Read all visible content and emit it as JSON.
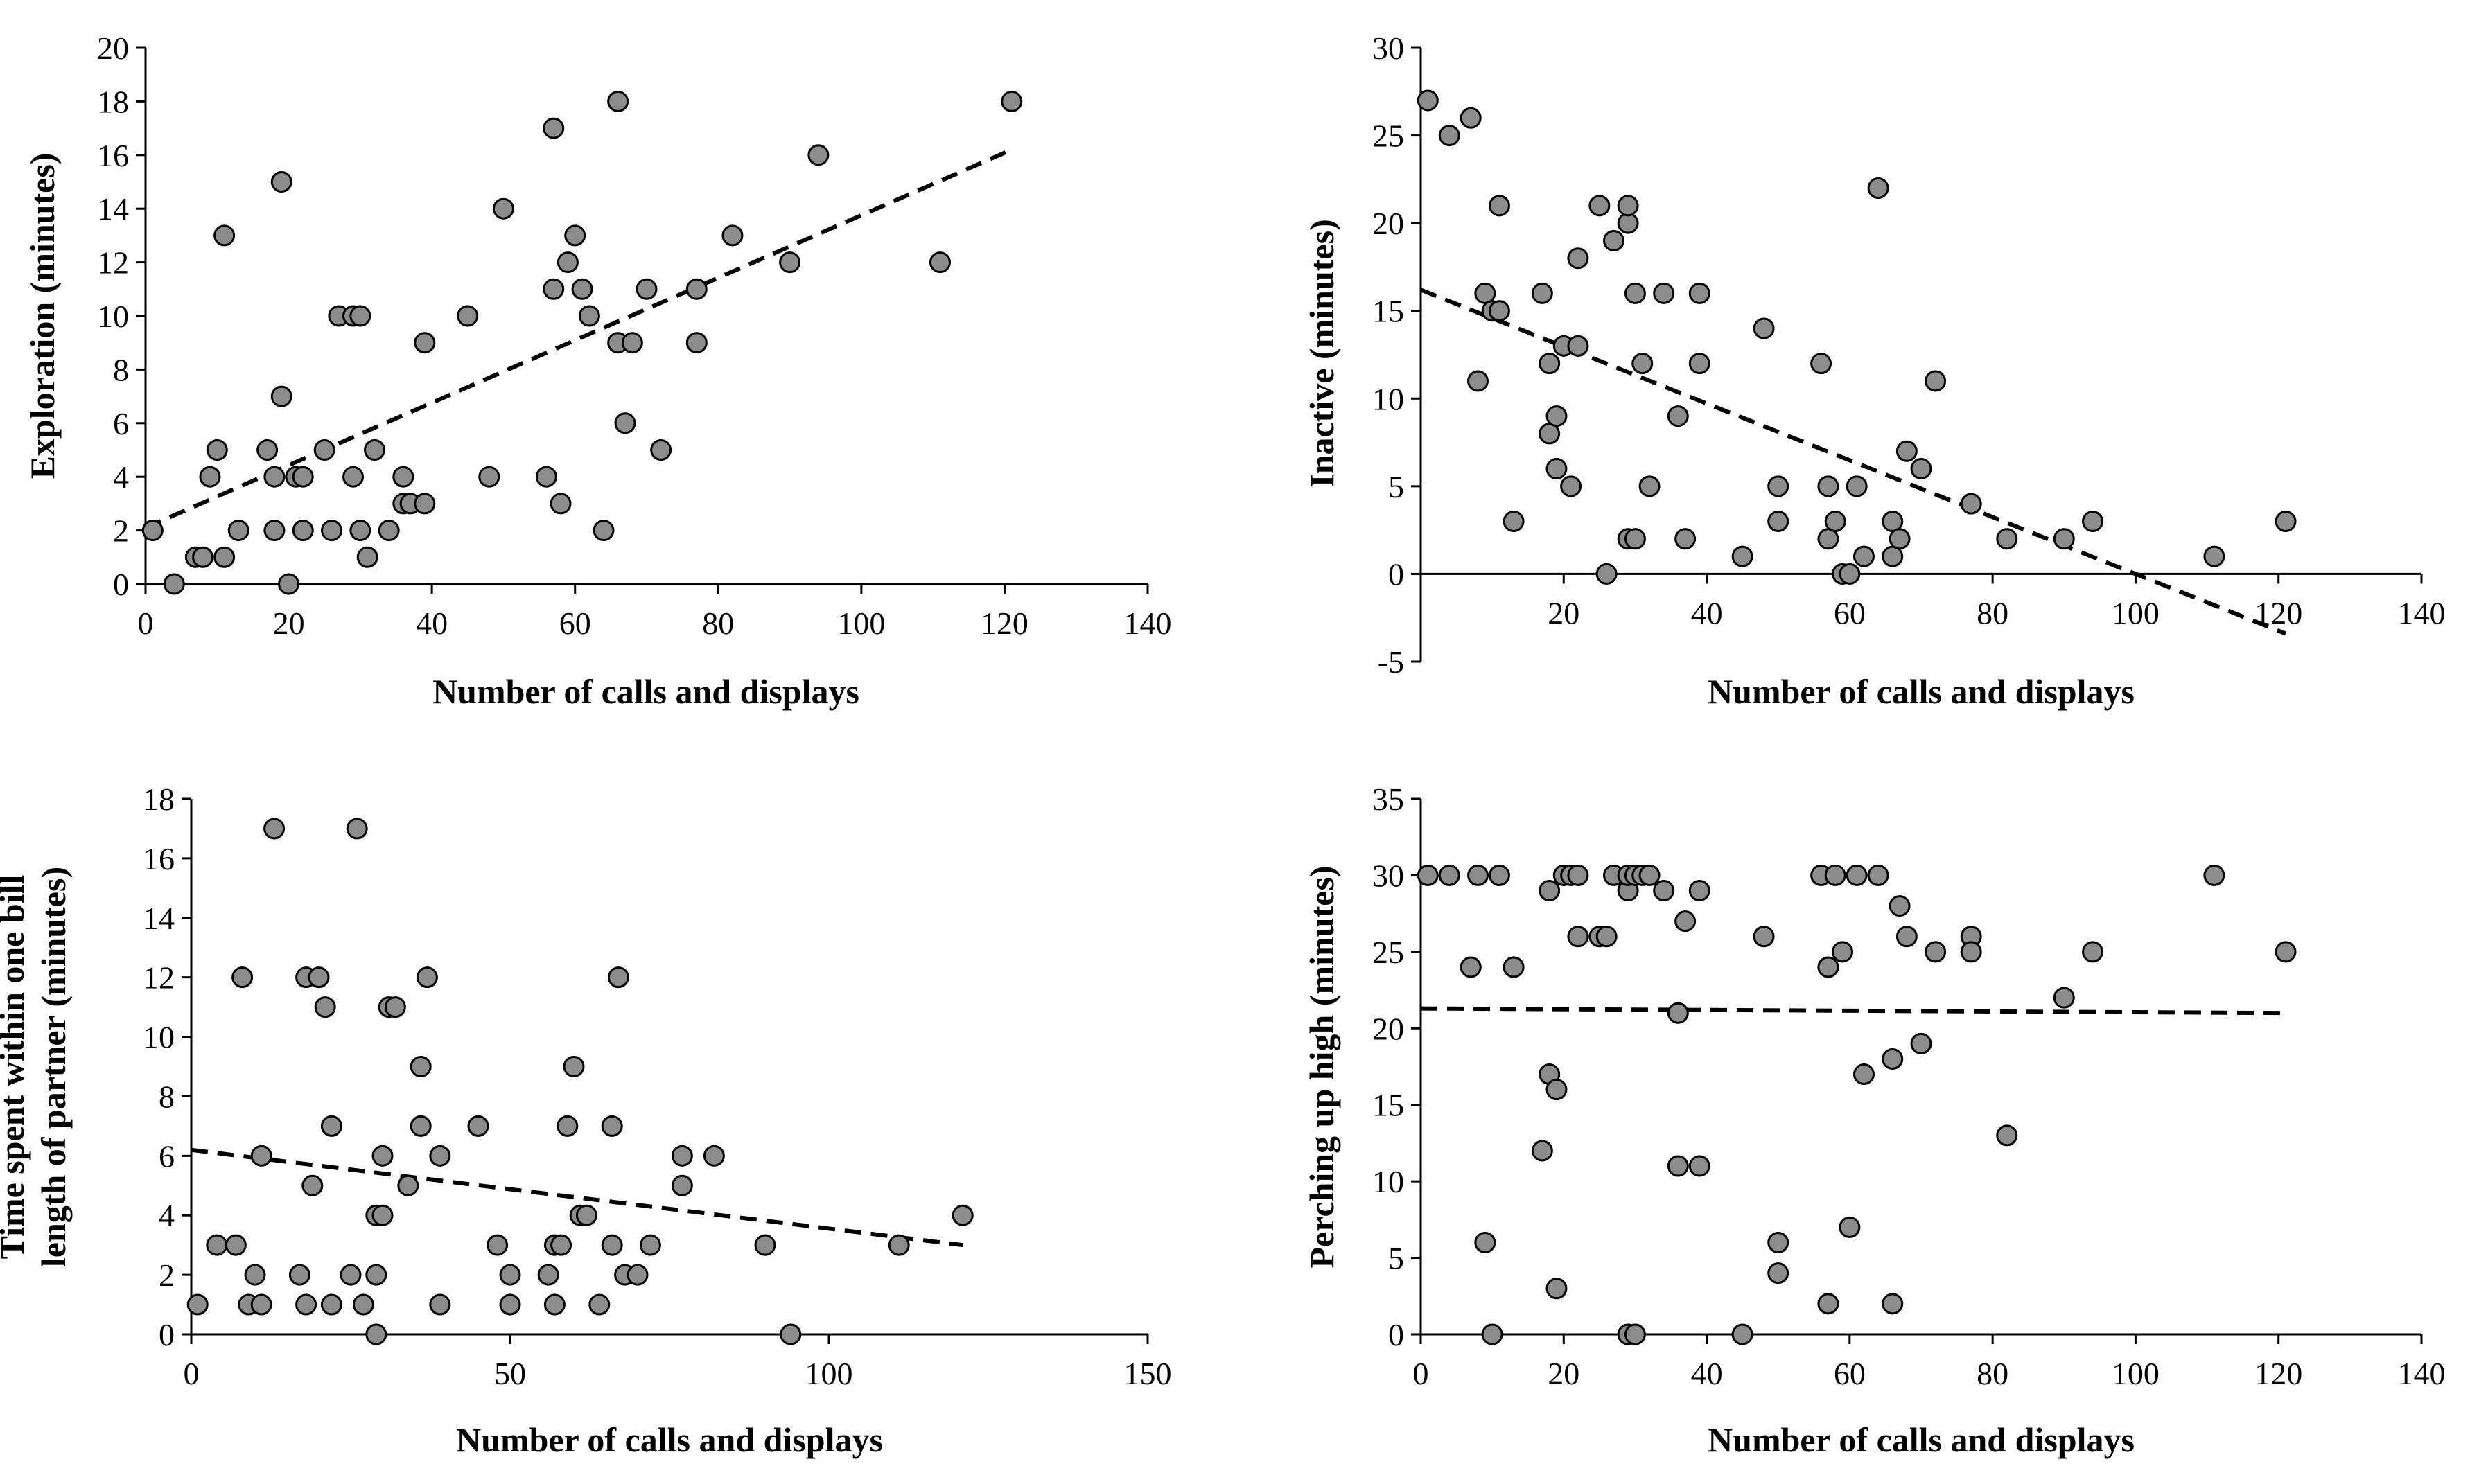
{
  "chart_data": [
    {
      "id": "exploration",
      "type": "scatter",
      "xlabel": "Number of calls and displays",
      "ylabel_lines": [
        "Exploration (minutes)"
      ],
      "xlim": [
        0,
        140
      ],
      "xticks": [
        0,
        20,
        40,
        60,
        80,
        100,
        120,
        140
      ],
      "ylim": [
        0,
        20
      ],
      "yticks": [
        0,
        2,
        4,
        6,
        8,
        10,
        12,
        14,
        16,
        18,
        20
      ],
      "x_axis_at": 0,
      "trendline": {
        "x": [
          0,
          121
        ],
        "y": [
          2.1,
          16.2
        ]
      },
      "points": [
        [
          1,
          2
        ],
        [
          4,
          0
        ],
        [
          7,
          1
        ],
        [
          8,
          1
        ],
        [
          9,
          4
        ],
        [
          10,
          5
        ],
        [
          11,
          1
        ],
        [
          11,
          13
        ],
        [
          13,
          2
        ],
        [
          17,
          5
        ],
        [
          18,
          2
        ],
        [
          18,
          4
        ],
        [
          19,
          7
        ],
        [
          19,
          15
        ],
        [
          20,
          0
        ],
        [
          21,
          4
        ],
        [
          22,
          2
        ],
        [
          22,
          4
        ],
        [
          25,
          5
        ],
        [
          26,
          2
        ],
        [
          27,
          10
        ],
        [
          29,
          4
        ],
        [
          29,
          10
        ],
        [
          30,
          2
        ],
        [
          30,
          10
        ],
        [
          31,
          1
        ],
        [
          32,
          5
        ],
        [
          34,
          2
        ],
        [
          36,
          4
        ],
        [
          36,
          3
        ],
        [
          37,
          3
        ],
        [
          39,
          3
        ],
        [
          39,
          9
        ],
        [
          45,
          10
        ],
        [
          48,
          4
        ],
        [
          50,
          14
        ],
        [
          56,
          4
        ],
        [
          57,
          11
        ],
        [
          57,
          17
        ],
        [
          58,
          3
        ],
        [
          59,
          12
        ],
        [
          60,
          13
        ],
        [
          61,
          11
        ],
        [
          62,
          10
        ],
        [
          64,
          2
        ],
        [
          66,
          9
        ],
        [
          66,
          18
        ],
        [
          67,
          6
        ],
        [
          68,
          9
        ],
        [
          70,
          11
        ],
        [
          72,
          5
        ],
        [
          77,
          9
        ],
        [
          77,
          11
        ],
        [
          82,
          13
        ],
        [
          90,
          12
        ],
        [
          94,
          16
        ],
        [
          111,
          12
        ],
        [
          121,
          18
        ]
      ]
    },
    {
      "id": "inactive",
      "type": "scatter",
      "xlabel": "Number of calls and displays",
      "ylabel_lines": [
        "Inactive (minutes)"
      ],
      "xlim": [
        0,
        140
      ],
      "xticks": [
        20,
        40,
        60,
        80,
        100,
        120,
        140
      ],
      "ylim": [
        -5,
        30
      ],
      "yticks": [
        -5,
        0,
        5,
        10,
        15,
        20,
        25,
        30
      ],
      "x_axis_at": 0,
      "trendline": {
        "x": [
          0,
          121
        ],
        "y": [
          16.2,
          -3.4
        ]
      },
      "points": [
        [
          1,
          27
        ],
        [
          4,
          25
        ],
        [
          7,
          26
        ],
        [
          8,
          11
        ],
        [
          9,
          16
        ],
        [
          10,
          15
        ],
        [
          11,
          21
        ],
        [
          11,
          15
        ],
        [
          13,
          3
        ],
        [
          17,
          16
        ],
        [
          18,
          8
        ],
        [
          18,
          12
        ],
        [
          19,
          9
        ],
        [
          19,
          6
        ],
        [
          20,
          13
        ],
        [
          21,
          5
        ],
        [
          22,
          18
        ],
        [
          22,
          13
        ],
        [
          25,
          21
        ],
        [
          26,
          0
        ],
        [
          27,
          19
        ],
        [
          29,
          20
        ],
        [
          29,
          21
        ],
        [
          29,
          2
        ],
        [
          30,
          2
        ],
        [
          30,
          16
        ],
        [
          31,
          12
        ],
        [
          32,
          5
        ],
        [
          34,
          16
        ],
        [
          36,
          9
        ],
        [
          37,
          2
        ],
        [
          39,
          16
        ],
        [
          39,
          12
        ],
        [
          45,
          1
        ],
        [
          48,
          14
        ],
        [
          50,
          5
        ],
        [
          50,
          3
        ],
        [
          56,
          12
        ],
        [
          57,
          5
        ],
        [
          57,
          2
        ],
        [
          58,
          3
        ],
        [
          59,
          0
        ],
        [
          60,
          0
        ],
        [
          61,
          5
        ],
        [
          62,
          1
        ],
        [
          64,
          22
        ],
        [
          66,
          3
        ],
        [
          66,
          1
        ],
        [
          67,
          2
        ],
        [
          68,
          7
        ],
        [
          70,
          6
        ],
        [
          72,
          11
        ],
        [
          77,
          4
        ],
        [
          82,
          2
        ],
        [
          90,
          2
        ],
        [
          94,
          3
        ],
        [
          111,
          1
        ],
        [
          121,
          3
        ]
      ]
    },
    {
      "id": "time-near-partner",
      "type": "scatter",
      "xlabel": "Number of calls and displays",
      "ylabel_lines": [
        "Time spent within one bill",
        "length of partner (minutes)"
      ],
      "xlim": [
        0,
        150
      ],
      "xticks": [
        0,
        50,
        100,
        150
      ],
      "ylim": [
        0,
        18
      ],
      "yticks": [
        0,
        2,
        4,
        6,
        8,
        10,
        12,
        14,
        16,
        18
      ],
      "x_axis_at": 0,
      "trendline": {
        "x": [
          0,
          121
        ],
        "y": [
          6.2,
          3.0
        ]
      },
      "points": [
        [
          1,
          1
        ],
        [
          4,
          3
        ],
        [
          7,
          3
        ],
        [
          8,
          12
        ],
        [
          9,
          1
        ],
        [
          10,
          2
        ],
        [
          11,
          1
        ],
        [
          11,
          6
        ],
        [
          13,
          17
        ],
        [
          17,
          2
        ],
        [
          18,
          1
        ],
        [
          18,
          12
        ],
        [
          19,
          5
        ],
        [
          20,
          12
        ],
        [
          21,
          11
        ],
        [
          22,
          7
        ],
        [
          22,
          1
        ],
        [
          25,
          2
        ],
        [
          26,
          17
        ],
        [
          27,
          1
        ],
        [
          29,
          2
        ],
        [
          29,
          4
        ],
        [
          29,
          0
        ],
        [
          30,
          4
        ],
        [
          30,
          6
        ],
        [
          31,
          11
        ],
        [
          32,
          11
        ],
        [
          34,
          5
        ],
        [
          36,
          7
        ],
        [
          36,
          9
        ],
        [
          37,
          12
        ],
        [
          39,
          6
        ],
        [
          39,
          1
        ],
        [
          45,
          7
        ],
        [
          48,
          3
        ],
        [
          50,
          1
        ],
        [
          50,
          2
        ],
        [
          56,
          2
        ],
        [
          57,
          1
        ],
        [
          57,
          3
        ],
        [
          58,
          3
        ],
        [
          59,
          7
        ],
        [
          60,
          9
        ],
        [
          61,
          4
        ],
        [
          62,
          4
        ],
        [
          64,
          1
        ],
        [
          66,
          3
        ],
        [
          66,
          7
        ],
        [
          67,
          12
        ],
        [
          68,
          2
        ],
        [
          70,
          2
        ],
        [
          72,
          3
        ],
        [
          77,
          6
        ],
        [
          77,
          5
        ],
        [
          82,
          6
        ],
        [
          90,
          3
        ],
        [
          94,
          0
        ],
        [
          111,
          3
        ],
        [
          121,
          4
        ]
      ]
    },
    {
      "id": "perching",
      "type": "scatter",
      "xlabel": "Number of calls and displays",
      "ylabel_lines": [
        "Perching up high (minutes)"
      ],
      "xlim": [
        0,
        140
      ],
      "xticks": [
        0,
        20,
        40,
        60,
        80,
        100,
        120,
        140
      ],
      "ylim": [
        0,
        35
      ],
      "yticks": [
        0,
        5,
        10,
        15,
        20,
        25,
        30,
        35
      ],
      "x_axis_at": 0,
      "trendline": {
        "x": [
          0,
          121
        ],
        "y": [
          21.3,
          21.0
        ]
      },
      "points": [
        [
          1,
          30
        ],
        [
          4,
          30
        ],
        [
          7,
          24
        ],
        [
          8,
          30
        ],
        [
          9,
          6
        ],
        [
          10,
          0
        ],
        [
          11,
          30
        ],
        [
          13,
          24
        ],
        [
          17,
          12
        ],
        [
          18,
          17
        ],
        [
          18,
          29
        ],
        [
          19,
          16
        ],
        [
          19,
          3
        ],
        [
          20,
          30
        ],
        [
          21,
          30
        ],
        [
          22,
          26
        ],
        [
          22,
          30
        ],
        [
          25,
          26
        ],
        [
          26,
          26
        ],
        [
          27,
          30
        ],
        [
          29,
          29
        ],
        [
          29,
          30
        ],
        [
          29,
          0
        ],
        [
          30,
          0
        ],
        [
          30,
          30
        ],
        [
          31,
          30
        ],
        [
          32,
          30
        ],
        [
          34,
          29
        ],
        [
          36,
          21
        ],
        [
          36,
          11
        ],
        [
          37,
          27
        ],
        [
          39,
          29
        ],
        [
          39,
          11
        ],
        [
          45,
          0
        ],
        [
          48,
          26
        ],
        [
          50,
          6
        ],
        [
          50,
          4
        ],
        [
          56,
          30
        ],
        [
          57,
          24
        ],
        [
          57,
          2
        ],
        [
          58,
          30
        ],
        [
          59,
          25
        ],
        [
          60,
          7
        ],
        [
          61,
          30
        ],
        [
          62,
          17
        ],
        [
          64,
          30
        ],
        [
          66,
          2
        ],
        [
          66,
          18
        ],
        [
          67,
          28
        ],
        [
          68,
          26
        ],
        [
          70,
          19
        ],
        [
          72,
          25
        ],
        [
          77,
          26
        ],
        [
          77,
          25
        ],
        [
          82,
          13
        ],
        [
          90,
          22
        ],
        [
          94,
          25
        ],
        [
          111,
          30
        ],
        [
          121,
          25
        ]
      ]
    }
  ]
}
